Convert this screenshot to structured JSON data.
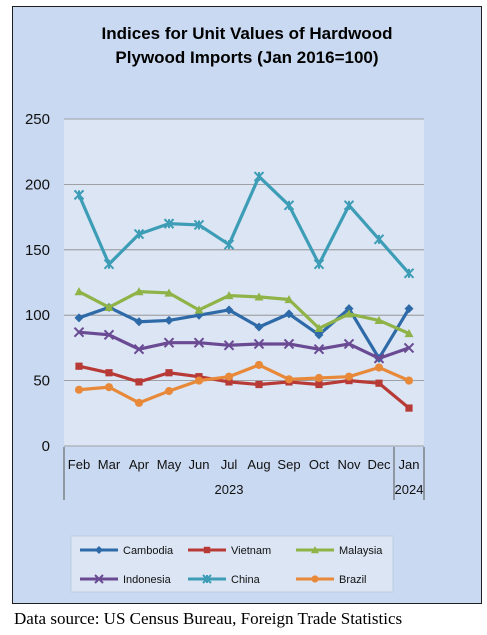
{
  "chart_data": {
    "type": "line",
    "title_lines": [
      "Indices for Unit Values of Hardwood",
      "Plywood Imports (Jan 2016=100)"
    ],
    "categories": [
      "Feb",
      "Mar",
      "Apr",
      "May",
      "Jun",
      "Jul",
      "Aug",
      "Sep",
      "Oct",
      "Nov",
      "Dec",
      "Jan"
    ],
    "year_groups": [
      {
        "label": "2023",
        "from": 0,
        "to": 10
      },
      {
        "label": "2024",
        "from": 11,
        "to": 11
      }
    ],
    "ylim": [
      0,
      250
    ],
    "yticks": [
      0,
      50,
      100,
      150,
      200,
      250
    ],
    "grid": true,
    "legend_position": "bottom",
    "series": [
      {
        "name": "Cambodia",
        "color": "#2e6aa8",
        "marker": "diamond",
        "values": [
          98,
          106,
          95,
          96,
          100,
          104,
          91,
          101,
          85,
          105,
          67,
          105
        ]
      },
      {
        "name": "Vietnam",
        "color": "#b83a36",
        "marker": "square",
        "values": [
          61,
          56,
          49,
          56,
          53,
          49,
          47,
          49,
          47,
          50,
          48,
          29
        ]
      },
      {
        "name": "Malaysia",
        "color": "#8fb347",
        "marker": "triangle",
        "values": [
          118,
          106,
          118,
          117,
          104,
          115,
          114,
          112,
          90,
          101,
          96,
          86
        ]
      },
      {
        "name": "Indonesia",
        "color": "#6a4a93",
        "marker": "cross",
        "values": [
          87,
          85,
          74,
          79,
          79,
          77,
          78,
          78,
          74,
          78,
          67,
          75
        ]
      },
      {
        "name": "China",
        "color": "#3d9db6",
        "marker": "star",
        "values": [
          192,
          139,
          162,
          170,
          169,
          154,
          206,
          184,
          139,
          184,
          158,
          132
        ]
      },
      {
        "name": "Brazil",
        "color": "#e8893a",
        "marker": "circle",
        "values": [
          43,
          45,
          33,
          42,
          50,
          53,
          62,
          51,
          52,
          53,
          60,
          50
        ]
      }
    ]
  },
  "footer": {
    "source": "Data source: US Census Bureau, Foreign Trade Statistics"
  }
}
